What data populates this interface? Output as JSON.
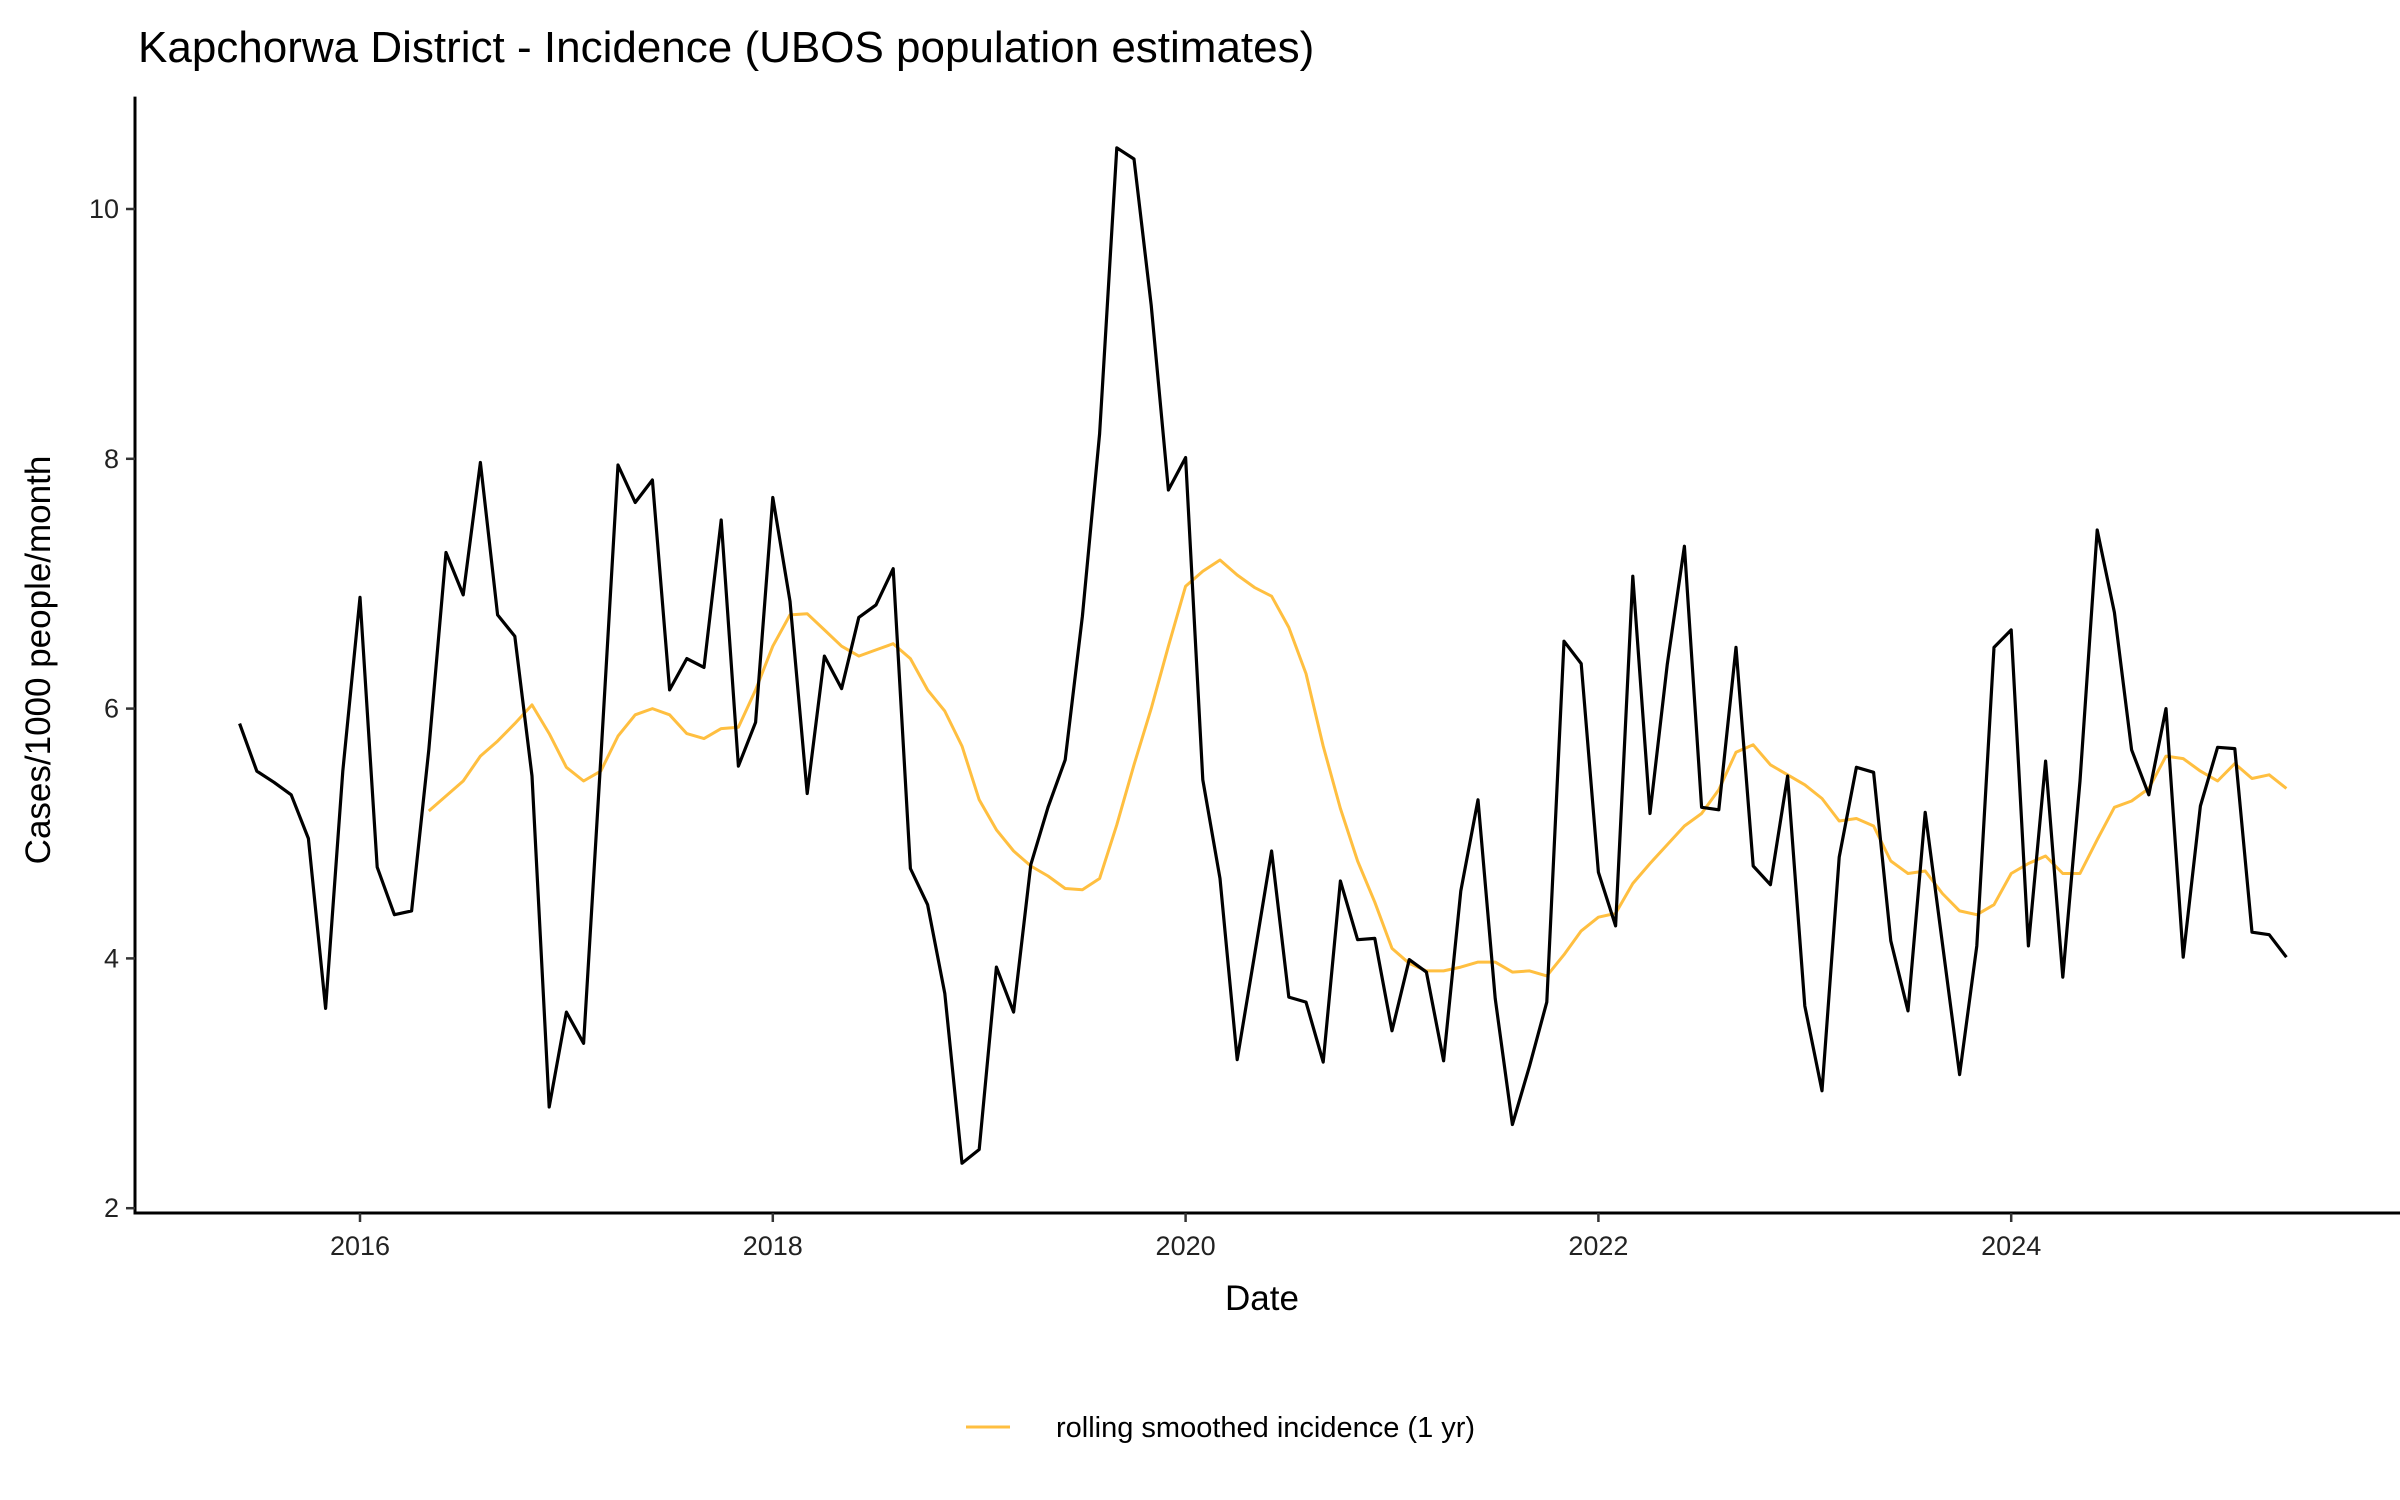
{
  "chart_data": {
    "type": "line",
    "title": "Kapchorwa District - Incidence (UBOS population estimates)",
    "xlabel": "Date",
    "ylabel": "Cases/1000 people/month",
    "xlim": [
      "2015-01",
      "2025-12"
    ],
    "ylim": [
      1.95,
      10.9
    ],
    "x_ticks": [
      "2016",
      "2018",
      "2020",
      "2022",
      "2024"
    ],
    "y_ticks": [
      2,
      4,
      6,
      8,
      10
    ],
    "grid": false,
    "legend_position": "bottom",
    "x": [
      "2015-06",
      "2015-07",
      "2015-08",
      "2015-09",
      "2015-10",
      "2015-11",
      "2015-12",
      "2016-01",
      "2016-02",
      "2016-03",
      "2016-04",
      "2016-05",
      "2016-06",
      "2016-07",
      "2016-08",
      "2016-09",
      "2016-10",
      "2016-11",
      "2016-12",
      "2017-01",
      "2017-02",
      "2017-03",
      "2017-04",
      "2017-05",
      "2017-06",
      "2017-07",
      "2017-08",
      "2017-09",
      "2017-10",
      "2017-11",
      "2017-12",
      "2018-01",
      "2018-02",
      "2018-03",
      "2018-04",
      "2018-05",
      "2018-06",
      "2018-07",
      "2018-08",
      "2018-09",
      "2018-10",
      "2018-11",
      "2018-12",
      "2019-01",
      "2019-02",
      "2019-03",
      "2019-04",
      "2019-05",
      "2019-06",
      "2019-07",
      "2019-08",
      "2019-09",
      "2019-10",
      "2019-11",
      "2019-12",
      "2020-01",
      "2020-02",
      "2020-03",
      "2020-04",
      "2020-05",
      "2020-06",
      "2020-07",
      "2020-08",
      "2020-09",
      "2020-10",
      "2020-11",
      "2020-12",
      "2021-01",
      "2021-02",
      "2021-03",
      "2021-04",
      "2021-05",
      "2021-06",
      "2021-07",
      "2021-08",
      "2021-09",
      "2021-10",
      "2021-11",
      "2021-12",
      "2022-01",
      "2022-02",
      "2022-03",
      "2022-04",
      "2022-05",
      "2022-06",
      "2022-07",
      "2022-08",
      "2022-09",
      "2022-10",
      "2022-11",
      "2022-12",
      "2023-01",
      "2023-02",
      "2023-03",
      "2023-04",
      "2023-05",
      "2023-06",
      "2023-07",
      "2023-08",
      "2023-09",
      "2023-10",
      "2023-11",
      "2023-12",
      "2024-01",
      "2024-02",
      "2024-03",
      "2024-04",
      "2024-05",
      "2024-06",
      "2024-07",
      "2024-08",
      "2024-09",
      "2024-10",
      "2024-11",
      "2024-12",
      "2025-01",
      "2025-02",
      "2025-03",
      "2025-04",
      "2025-05"
    ],
    "series": [
      {
        "name": "",
        "color": "#000000",
        "values": [
          5.88,
          5.5,
          5.41,
          5.31,
          4.96,
          3.6,
          5.5,
          6.89,
          4.73,
          4.35,
          4.38,
          5.67,
          7.25,
          6.91,
          7.97,
          6.75,
          6.58,
          5.46,
          2.81,
          3.57,
          3.32,
          5.6,
          7.95,
          7.65,
          7.83,
          6.15,
          6.4,
          6.33,
          7.51,
          5.54,
          5.89,
          7.69,
          6.86,
          5.32,
          6.42,
          6.16,
          6.73,
          6.83,
          7.12,
          4.72,
          4.43,
          3.72,
          2.36,
          2.47,
          3.93,
          3.57,
          4.75,
          5.21,
          5.59,
          6.74,
          8.2,
          10.49,
          10.4,
          9.23,
          7.75,
          8.01,
          5.43,
          4.64,
          3.19,
          4.02,
          4.86,
          3.69,
          3.65,
          3.17,
          4.62,
          4.15,
          4.16,
          3.42,
          3.99,
          3.89,
          3.18,
          4.54,
          5.27,
          3.68,
          2.67,
          3.14,
          3.65,
          6.54,
          6.36,
          4.69,
          4.26,
          7.06,
          5.16,
          6.35,
          7.3,
          5.21,
          5.19,
          6.49,
          4.74,
          4.59,
          5.46,
          3.62,
          2.94,
          4.81,
          5.53,
          5.49,
          4.14,
          3.58,
          5.17,
          4.12,
          3.07,
          4.1,
          6.49,
          6.63,
          4.1,
          5.58,
          3.85,
          5.42,
          7.43,
          6.77,
          5.67,
          5.31,
          6.0,
          4.01,
          5.22,
          5.69,
          5.68,
          4.21,
          4.19,
          4.01
        ]
      },
      {
        "name": "rolling smoothed incidence (1 yr)",
        "color": "#FFBF40",
        "values": [
          null,
          null,
          null,
          null,
          null,
          null,
          null,
          null,
          null,
          null,
          null,
          5.18,
          5.3,
          5.42,
          5.62,
          5.74,
          5.88,
          6.03,
          5.8,
          5.53,
          5.42,
          5.5,
          5.78,
          5.95,
          6.0,
          5.95,
          5.8,
          5.76,
          5.84,
          5.85,
          6.15,
          6.5,
          6.75,
          6.76,
          6.63,
          6.5,
          6.42,
          6.47,
          6.52,
          6.4,
          6.15,
          5.98,
          5.7,
          5.27,
          5.03,
          4.86,
          4.74,
          4.66,
          4.56,
          4.55,
          4.64,
          5.07,
          5.55,
          6.0,
          6.5,
          6.98,
          7.1,
          7.19,
          7.07,
          6.97,
          6.9,
          6.65,
          6.28,
          5.7,
          5.2,
          4.78,
          4.45,
          4.08,
          3.96,
          3.9,
          3.9,
          3.93,
          3.97,
          3.97,
          3.89,
          3.9,
          3.86,
          4.03,
          4.22,
          4.33,
          4.36,
          4.6,
          4.76,
          4.91,
          5.06,
          5.16,
          5.35,
          5.65,
          5.71,
          5.55,
          5.47,
          5.39,
          5.28,
          5.1,
          5.12,
          5.06,
          4.78,
          4.68,
          4.7,
          4.52,
          4.38,
          4.35,
          4.43,
          4.68,
          4.76,
          4.82,
          4.68,
          4.68,
          4.95,
          5.21,
          5.26,
          5.36,
          5.62,
          5.6,
          5.5,
          5.42,
          5.56,
          5.44,
          5.47,
          5.36
        ]
      }
    ]
  }
}
